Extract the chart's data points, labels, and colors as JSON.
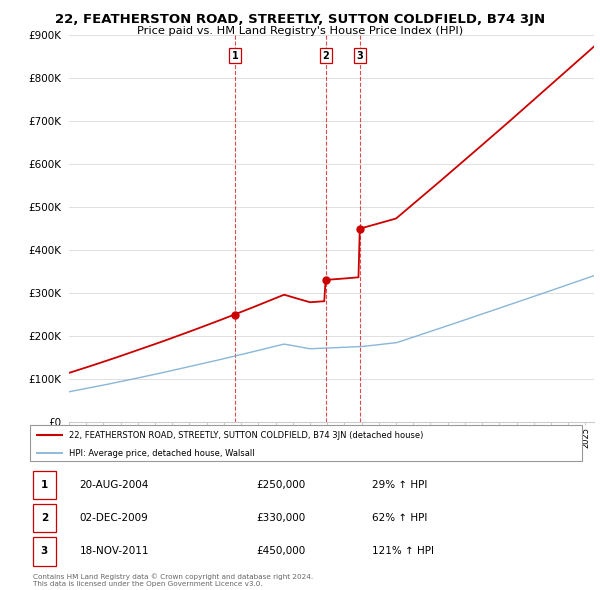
{
  "title": "22, FEATHERSTON ROAD, STREETLY, SUTTON COLDFIELD, B74 3JN",
  "subtitle": "Price paid vs. HM Land Registry's House Price Index (HPI)",
  "legend_property": "22, FEATHERSTON ROAD, STREETLY, SUTTON COLDFIELD, B74 3JN (detached house)",
  "legend_hpi": "HPI: Average price, detached house, Walsall",
  "transactions": [
    {
      "label": "1",
      "date_num": 2004.64,
      "price": 250000,
      "pct": "29%",
      "dir": "↑",
      "date_str": "20-AUG-2004"
    },
    {
      "label": "2",
      "date_num": 2009.92,
      "price": 330000,
      "pct": "62%",
      "dir": "↑",
      "date_str": "02-DEC-2009"
    },
    {
      "label": "3",
      "date_num": 2011.89,
      "price": 450000,
      "pct": "121%",
      "dir": "↑",
      "date_str": "18-NOV-2011"
    }
  ],
  "property_color": "#cc0000",
  "hpi_color": "#7bafd4",
  "vline_color": "#cc0000",
  "ylim": [
    0,
    900000
  ],
  "xlim_start": 1995.0,
  "xlim_end": 2025.5,
  "yticks": [
    0,
    100000,
    200000,
    300000,
    400000,
    500000,
    600000,
    700000,
    800000,
    900000
  ],
  "footer": "Contains HM Land Registry data © Crown copyright and database right 2024.\nThis data is licensed under the Open Government Licence v3.0.",
  "background_color": "#ffffff",
  "grid_color": "#e0e0e0"
}
